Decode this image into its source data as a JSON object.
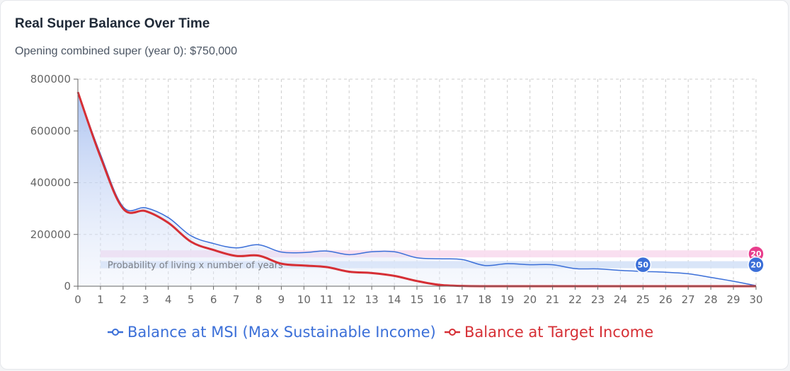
{
  "card": {
    "title": "Real Super Balance Over Time",
    "subtitle": "Opening combined super (year 0): $750,000"
  },
  "colors": {
    "msi": "#3b6fd8",
    "target": "#d62f35",
    "msi_fill": "#b9cdf3",
    "band_pink": "#f8dcee",
    "band_blue": "#d5e2f7",
    "marker_pink": "#e83e8c",
    "marker_blue": "#3b6fd8",
    "grid": "#cccccc"
  },
  "chart_data": {
    "type": "line",
    "x": [
      0,
      1,
      2,
      3,
      4,
      5,
      6,
      7,
      8,
      9,
      10,
      11,
      12,
      13,
      14,
      15,
      16,
      17,
      18,
      19,
      20,
      21,
      22,
      23,
      24,
      25,
      26,
      27,
      28,
      29,
      30
    ],
    "xlim": [
      0,
      30
    ],
    "ylim": [
      0,
      800000
    ],
    "yticks": [
      0,
      200000,
      400000,
      600000,
      800000
    ],
    "grid": true,
    "legend_position": "bottom",
    "series": [
      {
        "name": "Balance at MSI (Max Sustainable Income)",
        "color": "#3b6fd8",
        "filled": true,
        "values": [
          750000,
          510000,
          307000,
          303000,
          265000,
          195000,
          165000,
          148000,
          160000,
          132000,
          130000,
          136000,
          122000,
          133000,
          133000,
          110000,
          106000,
          103000,
          80000,
          87000,
          83000,
          83000,
          68000,
          67000,
          61000,
          57000,
          54000,
          48000,
          34000,
          19000,
          2000
        ]
      },
      {
        "name": "Balance at Target Income",
        "color": "#d62f35",
        "filled": false,
        "values": [
          750000,
          500000,
          300000,
          290000,
          245000,
          172000,
          140000,
          117000,
          118000,
          87000,
          80000,
          74000,
          56000,
          51000,
          40000,
          20000,
          5000,
          1000,
          0,
          0,
          0,
          0,
          0,
          0,
          0,
          0,
          0,
          0,
          0,
          0,
          0
        ]
      }
    ],
    "annotations": {
      "band_label": "Probability of living x number of years",
      "bands": [
        {
          "name": "pink",
          "x_start": 1,
          "x_end": 30,
          "y_center": 125000
        },
        {
          "name": "blue",
          "x_start": 1,
          "x_end": 30,
          "y_center": 83000
        }
      ],
      "markers": [
        {
          "label": "20",
          "x": 30,
          "y": 125000,
          "color": "#e83e8c"
        },
        {
          "label": "50",
          "x": 25,
          "y": 83000,
          "color": "#3b6fd8"
        },
        {
          "label": "20",
          "x": 30,
          "y": 83000,
          "color": "#3b6fd8"
        }
      ]
    }
  }
}
